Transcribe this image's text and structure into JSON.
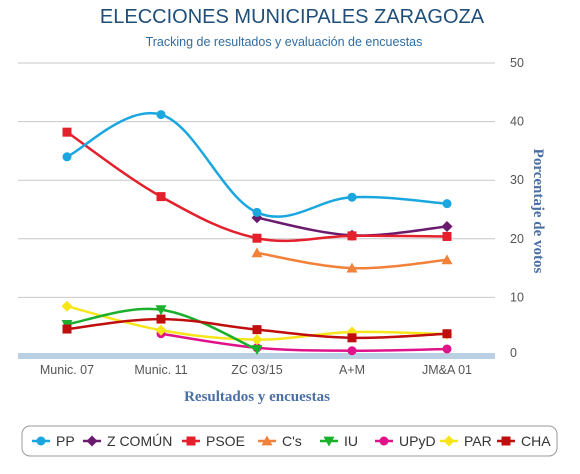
{
  "chart_data": {
    "type": "line",
    "title": "ELECCIONES MUNICIPALES ZARAGOZA",
    "subtitle": "Tracking de resultados y evaluación de encuestas",
    "xlabel": "Resultados y encuestas",
    "ylabel": "Porcentaje de votos",
    "categories": [
      "Munic. 07",
      "Munic. 11",
      "ZC 03/15",
      "A+M",
      "JM&A 01"
    ],
    "ylim": [
      0,
      50
    ],
    "yticks": [
      "0",
      "10",
      "20",
      "30",
      "40",
      "50"
    ],
    "y_axis_side": "right",
    "grid": true,
    "legend_position": "bottom",
    "series": [
      {
        "name": "PP",
        "color": "#1aa7df",
        "marker": "circle",
        "values": [
          34,
          41.2,
          24.5,
          27.1,
          26
        ]
      },
      {
        "name": "Z COMÚN",
        "color": "#6a1b6e",
        "marker": "diamond",
        "values": [
          null,
          null,
          23.6,
          20.6,
          22.1
        ]
      },
      {
        "name": "PSOE",
        "color": "#e3202b",
        "marker": "square",
        "values": [
          38.2,
          27.2,
          20.1,
          20.5,
          20.4
        ]
      },
      {
        "name": "C's",
        "color": "#f2813a",
        "marker": "triangle-up",
        "values": [
          null,
          null,
          17.6,
          15,
          16.4
        ]
      },
      {
        "name": "IU",
        "color": "#1bb02b",
        "marker": "triangle-down",
        "values": [
          5.4,
          7.9,
          1.1,
          null,
          null
        ]
      },
      {
        "name": "UPyD",
        "color": "#e0128a",
        "marker": "circle",
        "values": [
          null,
          3.8,
          1.4,
          0.9,
          1.2
        ]
      },
      {
        "name": "PAR",
        "color": "#f7e51a",
        "marker": "diamond",
        "values": [
          8.5,
          4.4,
          2.8,
          4.1,
          3.7
        ]
      },
      {
        "name": "CHA",
        "color": "#c00e0e",
        "marker": "square",
        "values": [
          4.6,
          6.3,
          4.5,
          3.1,
          3.8
        ]
      }
    ]
  }
}
